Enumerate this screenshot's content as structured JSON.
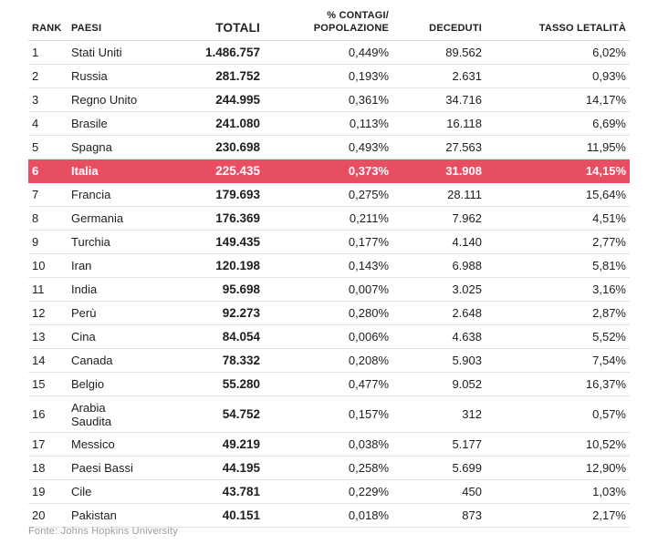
{
  "table": {
    "headers": {
      "rank": "RANK",
      "country": "PAESI",
      "total": "TOTALI",
      "pct_line1": "% CONTAGI/",
      "pct_line2": "POPOLAZIONE",
      "deaths": "DECEDUTI",
      "rate": "TASSO LETALITÀ"
    },
    "rows": [
      {
        "rank": "1",
        "country": "Stati Uniti",
        "total": "1.486.757",
        "pct": "0,449%",
        "deaths": "89.562",
        "rate": "6,02%"
      },
      {
        "rank": "2",
        "country": "Russia",
        "total": "281.752",
        "pct": "0,193%",
        "deaths": "2.631",
        "rate": "0,93%"
      },
      {
        "rank": "3",
        "country": "Regno Unito",
        "total": "244.995",
        "pct": "0,361%",
        "deaths": "34.716",
        "rate": "14,17%"
      },
      {
        "rank": "4",
        "country": "Brasile",
        "total": "241.080",
        "pct": "0,113%",
        "deaths": "16.118",
        "rate": "6,69%"
      },
      {
        "rank": "5",
        "country": "Spagna",
        "total": "230.698",
        "pct": "0,493%",
        "deaths": "27.563",
        "rate": "11,95%"
      },
      {
        "rank": "6",
        "country": "Italia",
        "total": "225.435",
        "pct": "0,373%",
        "deaths": "31.908",
        "rate": "14,15%",
        "highlight": true
      },
      {
        "rank": "7",
        "country": "Francia",
        "total": "179.693",
        "pct": "0,275%",
        "deaths": "28.111",
        "rate": "15,64%"
      },
      {
        "rank": "8",
        "country": "Germania",
        "total": "176.369",
        "pct": "0,211%",
        "deaths": "7.962",
        "rate": "4,51%"
      },
      {
        "rank": "9",
        "country": "Turchia",
        "total": "149.435",
        "pct": "0,177%",
        "deaths": "4.140",
        "rate": "2,77%"
      },
      {
        "rank": "10",
        "country": "Iran",
        "total": "120.198",
        "pct": "0,143%",
        "deaths": "6.988",
        "rate": "5,81%"
      },
      {
        "rank": "11",
        "country": "India",
        "total": "95.698",
        "pct": "0,007%",
        "deaths": "3.025",
        "rate": "3,16%"
      },
      {
        "rank": "12",
        "country": "Perù",
        "total": "92.273",
        "pct": "0,280%",
        "deaths": "2.648",
        "rate": "2,87%"
      },
      {
        "rank": "13",
        "country": "Cina",
        "total": "84.054",
        "pct": "0,006%",
        "deaths": "4.638",
        "rate": "5,52%"
      },
      {
        "rank": "14",
        "country": "Canada",
        "total": "78.332",
        "pct": "0,208%",
        "deaths": "5.903",
        "rate": "7,54%"
      },
      {
        "rank": "15",
        "country": "Belgio",
        "total": "55.280",
        "pct": "0,477%",
        "deaths": "9.052",
        "rate": "16,37%"
      },
      {
        "rank": "16",
        "country": "Arabia Saudita",
        "total": "54.752",
        "pct": "0,157%",
        "deaths": "312",
        "rate": "0,57%"
      },
      {
        "rank": "17",
        "country": "Messico",
        "total": "49.219",
        "pct": "0,038%",
        "deaths": "5.177",
        "rate": "10,52%"
      },
      {
        "rank": "18",
        "country": "Paesi Bassi",
        "total": "44.195",
        "pct": "0,258%",
        "deaths": "5.699",
        "rate": "12,90%"
      },
      {
        "rank": "19",
        "country": "Cile",
        "total": "43.781",
        "pct": "0,229%",
        "deaths": "450",
        "rate": "1,03%"
      },
      {
        "rank": "20",
        "country": "Pakistan",
        "total": "40.151",
        "pct": "0,018%",
        "deaths": "873",
        "rate": "2,17%"
      }
    ]
  },
  "source": "Fonte: Johns Hopkins University",
  "colors": {
    "highlight_bg": "#e84e62",
    "highlight_text": "#ffffff",
    "row_border": "#e3e3e3",
    "source_text": "#9a9a9a"
  }
}
